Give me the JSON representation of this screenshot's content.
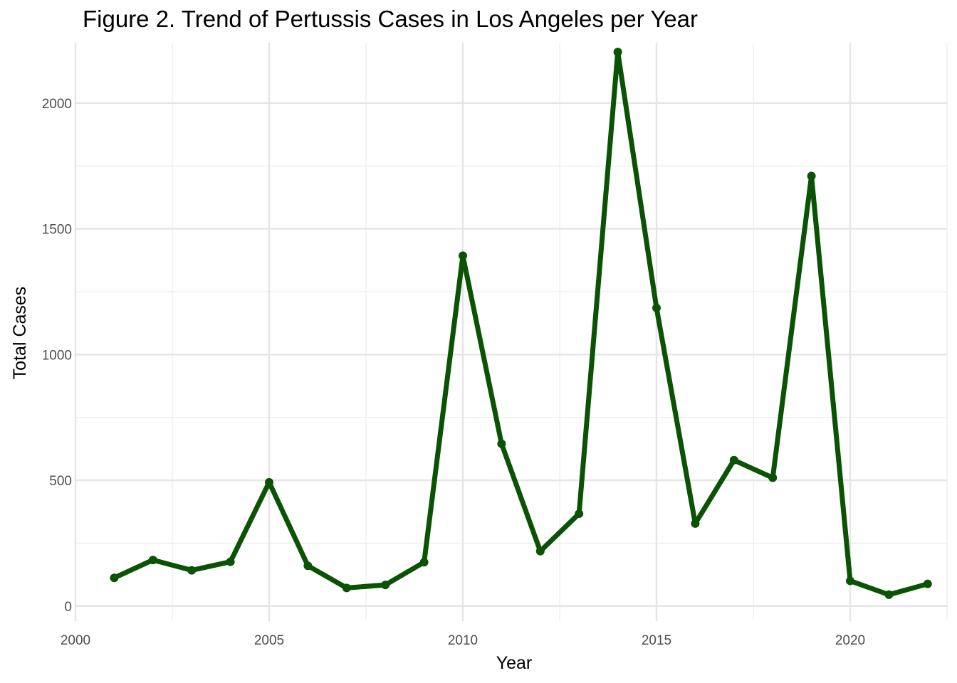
{
  "chart_data": {
    "type": "line",
    "title": "Figure 2. Trend of Pertussis Cases in Los Angeles per Year",
    "xlabel": "Year",
    "ylabel": "Total Cases",
    "xlim": [
      2000,
      2022.5
    ],
    "ylim": [
      -60,
      2240
    ],
    "x_ticks": [
      2000,
      2005,
      2010,
      2015,
      2020
    ],
    "y_ticks": [
      0,
      500,
      1000,
      1500,
      2000
    ],
    "grid": true,
    "legend": "none",
    "color": "#0b5304",
    "series": [
      {
        "x": [
          2001,
          2002,
          2003,
          2004,
          2005,
          2006,
          2007,
          2008,
          2009,
          2010,
          2011,
          2012,
          2013,
          2014,
          2015,
          2016,
          2017,
          2018,
          2019,
          2020,
          2021,
          2022
        ],
        "values": [
          112,
          183,
          142,
          176,
          492,
          160,
          72,
          84,
          174,
          1393,
          645,
          218,
          367,
          2203,
          1185,
          328,
          580,
          510,
          1710,
          100,
          45,
          88
        ]
      }
    ]
  }
}
